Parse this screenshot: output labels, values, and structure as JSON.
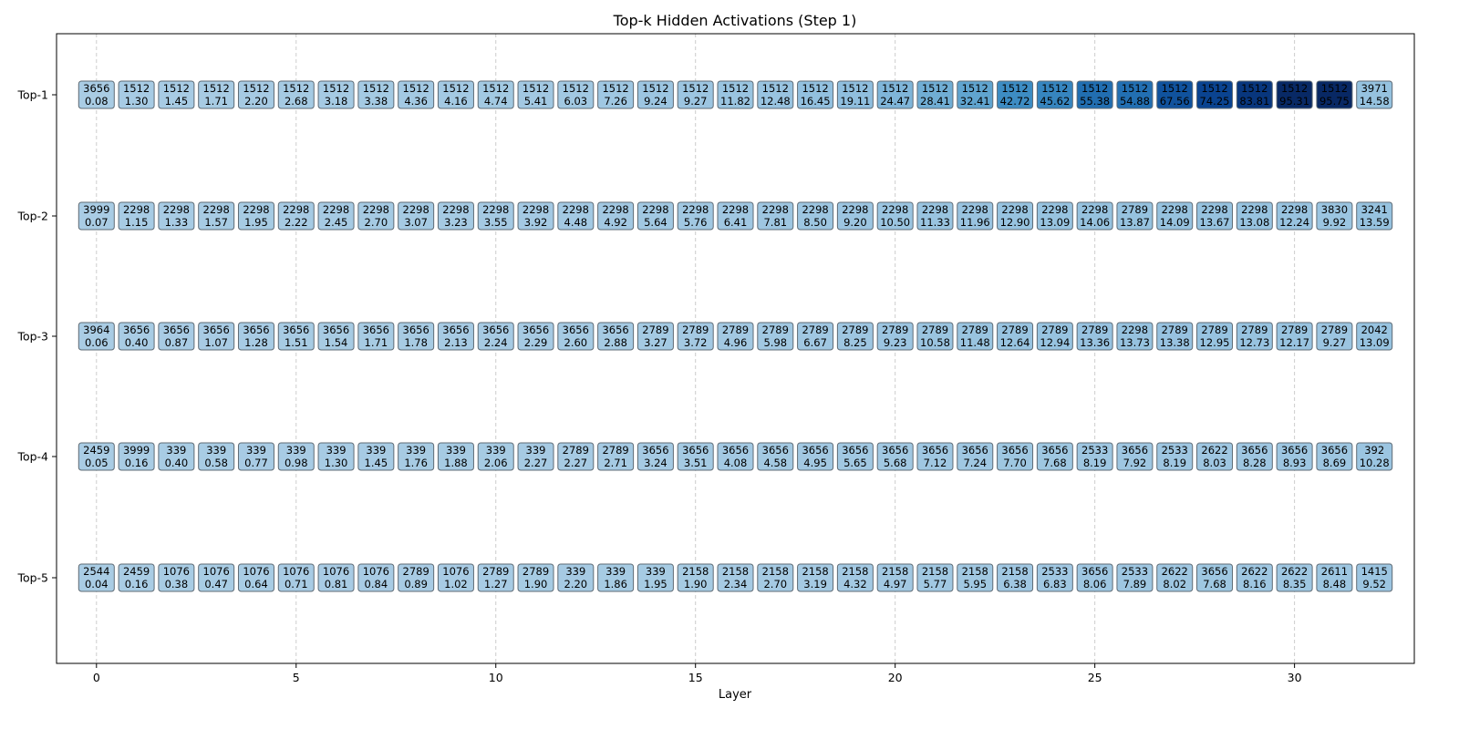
{
  "chart_data": {
    "type": "heatmap",
    "title": "Top-k Hidden Activations (Step 1)",
    "xlabel": "Layer",
    "ylabel": "",
    "x_ticks": [
      0,
      5,
      10,
      15,
      20,
      25,
      30
    ],
    "xlim": [
      -1,
      33
    ],
    "grid": "vertical dashed at x ticks",
    "colormap": "Blues",
    "row_labels": [
      "Top-1",
      "Top-2",
      "Top-3",
      "Top-4",
      "Top-5"
    ],
    "layers": [
      0,
      1,
      2,
      3,
      4,
      5,
      6,
      7,
      8,
      9,
      10,
      11,
      12,
      13,
      14,
      15,
      16,
      17,
      18,
      19,
      20,
      21,
      22,
      23,
      24,
      25,
      26,
      27,
      28,
      29,
      30,
      31,
      32
    ],
    "rows": [
      {
        "label": "Top-1",
        "ids": [
          "3656",
          "1512",
          "1512",
          "1512",
          "1512",
          "1512",
          "1512",
          "1512",
          "1512",
          "1512",
          "1512",
          "1512",
          "1512",
          "1512",
          "1512",
          "1512",
          "1512",
          "1512",
          "1512",
          "1512",
          "1512",
          "1512",
          "1512",
          "1512",
          "1512",
          "1512",
          "1512",
          "1512",
          "1512",
          "1512",
          "1512",
          "1512",
          "3971"
        ],
        "values": [
          "0.08",
          "1.30",
          "1.45",
          "1.71",
          "2.20",
          "2.68",
          "3.18",
          "3.38",
          "4.36",
          "4.16",
          "4.74",
          "5.41",
          "6.03",
          "7.26",
          "9.24",
          "9.27",
          "11.82",
          "12.48",
          "16.45",
          "19.11",
          "24.47",
          "28.41",
          "32.41",
          "42.72",
          "45.62",
          "55.38",
          "54.88",
          "67.56",
          "74.25",
          "83.81",
          "95.31",
          "95.75",
          "14.58"
        ]
      },
      {
        "label": "Top-2",
        "ids": [
          "3999",
          "2298",
          "2298",
          "2298",
          "2298",
          "2298",
          "2298",
          "2298",
          "2298",
          "2298",
          "2298",
          "2298",
          "2298",
          "2298",
          "2298",
          "2298",
          "2298",
          "2298",
          "2298",
          "2298",
          "2298",
          "2298",
          "2298",
          "2298",
          "2298",
          "2298",
          "2789",
          "2298",
          "2298",
          "2298",
          "2298",
          "3830",
          "3241"
        ],
        "values": [
          "0.07",
          "1.15",
          "1.33",
          "1.57",
          "1.95",
          "2.22",
          "2.45",
          "2.70",
          "3.07",
          "3.23",
          "3.55",
          "3.92",
          "4.48",
          "4.92",
          "5.64",
          "5.76",
          "6.41",
          "7.81",
          "8.50",
          "9.20",
          "10.50",
          "11.33",
          "11.96",
          "12.90",
          "13.09",
          "14.06",
          "13.87",
          "14.09",
          "13.67",
          "13.08",
          "12.24",
          "9.92",
          "13.59"
        ]
      },
      {
        "label": "Top-3",
        "ids": [
          "3964",
          "3656",
          "3656",
          "3656",
          "3656",
          "3656",
          "3656",
          "3656",
          "3656",
          "3656",
          "3656",
          "3656",
          "3656",
          "3656",
          "2789",
          "2789",
          "2789",
          "2789",
          "2789",
          "2789",
          "2789",
          "2789",
          "2789",
          "2789",
          "2789",
          "2789",
          "2298",
          "2789",
          "2789",
          "2789",
          "2789",
          "2789",
          "2042"
        ],
        "values": [
          "0.06",
          "0.40",
          "0.87",
          "1.07",
          "1.28",
          "1.51",
          "1.54",
          "1.71",
          "1.78",
          "2.13",
          "2.24",
          "2.29",
          "2.60",
          "2.88",
          "3.27",
          "3.72",
          "4.96",
          "5.98",
          "6.67",
          "8.25",
          "9.23",
          "10.58",
          "11.48",
          "12.64",
          "12.94",
          "13.36",
          "13.73",
          "13.38",
          "12.95",
          "12.73",
          "12.17",
          "9.27",
          "13.09"
        ]
      },
      {
        "label": "Top-4",
        "ids": [
          "2459",
          "3999",
          "339",
          "339",
          "339",
          "339",
          "339",
          "339",
          "339",
          "339",
          "339",
          "339",
          "2789",
          "2789",
          "3656",
          "3656",
          "3656",
          "3656",
          "3656",
          "3656",
          "3656",
          "3656",
          "3656",
          "3656",
          "3656",
          "2533",
          "3656",
          "2533",
          "2622",
          "3656",
          "3656",
          "3656",
          "392"
        ],
        "values": [
          "0.05",
          "0.16",
          "0.40",
          "0.58",
          "0.77",
          "0.98",
          "1.30",
          "1.45",
          "1.76",
          "1.88",
          "2.06",
          "2.27",
          "2.27",
          "2.71",
          "3.24",
          "3.51",
          "4.08",
          "4.58",
          "4.95",
          "5.65",
          "5.68",
          "7.12",
          "7.24",
          "7.70",
          "7.68",
          "8.19",
          "7.92",
          "8.19",
          "8.03",
          "8.28",
          "8.93",
          "8.69",
          "10.28"
        ]
      },
      {
        "label": "Top-5",
        "ids": [
          "2544",
          "2459",
          "1076",
          "1076",
          "1076",
          "1076",
          "1076",
          "1076",
          "2789",
          "1076",
          "2789",
          "2789",
          "339",
          "339",
          "339",
          "2158",
          "2158",
          "2158",
          "2158",
          "2158",
          "2158",
          "2158",
          "2158",
          "2158",
          "2533",
          "3656",
          "2533",
          "2622",
          "3656",
          "2622",
          "2622",
          "2611",
          "1415"
        ],
        "values": [
          "0.04",
          "0.16",
          "0.38",
          "0.47",
          "0.64",
          "0.71",
          "0.81",
          "0.84",
          "0.89",
          "1.02",
          "1.27",
          "1.90",
          "2.20",
          "1.86",
          "1.95",
          "1.90",
          "2.34",
          "2.70",
          "3.19",
          "4.32",
          "4.97",
          "5.77",
          "5.95",
          "6.38",
          "6.83",
          "8.06",
          "7.89",
          "8.02",
          "7.68",
          "8.16",
          "8.35",
          "8.48",
          "9.52"
        ]
      }
    ],
    "colors": {
      "light": "#a9cce4",
      "dark": "#08306b",
      "frame": "#000000",
      "grid": "#cccccc",
      "cell_border": "#5f6b75"
    }
  }
}
